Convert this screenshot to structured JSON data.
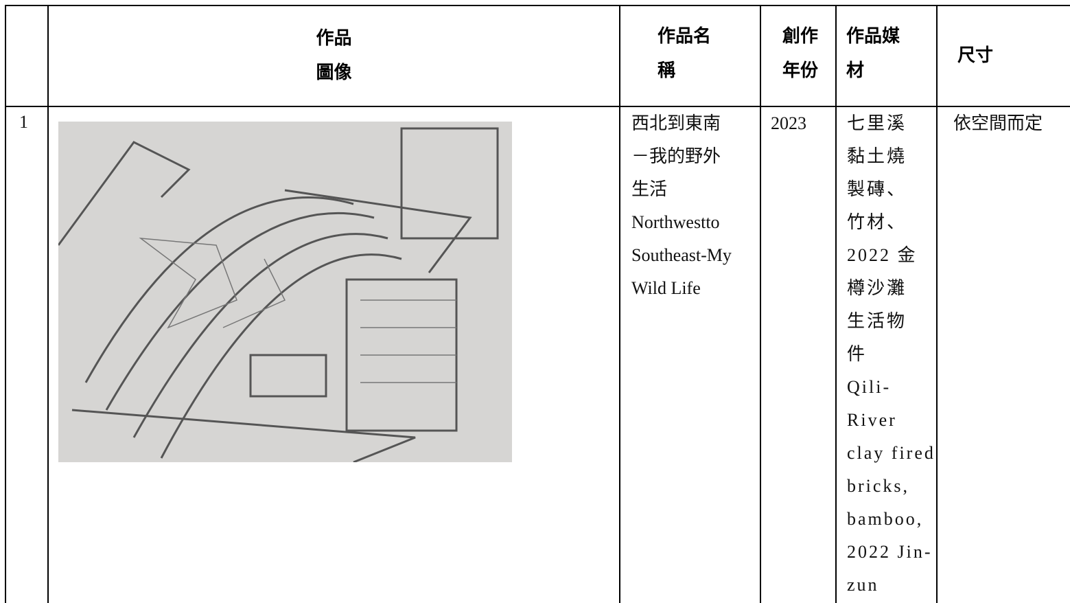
{
  "table": {
    "header": [
      "",
      "作品\n圖像",
      "作品名\n稱",
      "創作\n年份",
      "作品媒\n材",
      "尺寸"
    ],
    "rows": [
      [
        "1",
        "",
        "西北到東南\n－我的野外\n生活\nNorthwestto\nSoutheast-My\nWild Life",
        "2023",
        "七里溪\n黏土燒\n製磚、\n竹材、\n2022 金\n樽沙灘\n生活物\n件\nQili-\nRiver\nclay fired\nbricks,\nbamboo,\n2022 Jin-\nzun",
        "依空間而定"
      ]
    ]
  }
}
